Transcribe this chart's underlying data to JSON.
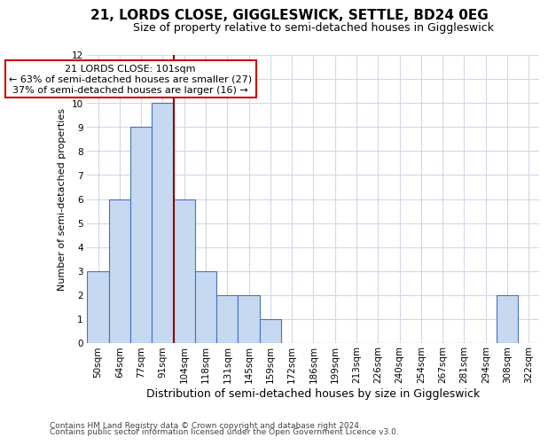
{
  "title": "21, LORDS CLOSE, GIGGLESWICK, SETTLE, BD24 0EG",
  "subtitle": "Size of property relative to semi-detached houses in Giggleswick",
  "xlabel": "Distribution of semi-detached houses by size in Giggleswick",
  "ylabel": "Number of semi-detached properties",
  "categories": [
    "50sqm",
    "64sqm",
    "77sqm",
    "91sqm",
    "104sqm",
    "118sqm",
    "131sqm",
    "145sqm",
    "159sqm",
    "172sqm",
    "186sqm",
    "199sqm",
    "213sqm",
    "226sqm",
    "240sqm",
    "254sqm",
    "267sqm",
    "281sqm",
    "294sqm",
    "308sqm",
    "322sqm"
  ],
  "values": [
    3,
    6,
    9,
    10,
    6,
    3,
    2,
    2,
    1,
    0,
    0,
    0,
    0,
    0,
    0,
    0,
    0,
    0,
    0,
    2,
    0
  ],
  "bar_color": "#c6d9f0",
  "bar_edge_color": "#4472c4",
  "vline_x": 3.5,
  "vline_color": "#8B0000",
  "annotation_text": "21 LORDS CLOSE: 101sqm\n← 63% of semi-detached houses are smaller (27)\n37% of semi-detached houses are larger (16) →",
  "annotation_box_color": "#ffffff",
  "annotation_box_edge": "#cc0000",
  "ylim": [
    0,
    12
  ],
  "yticks": [
    0,
    1,
    2,
    3,
    4,
    5,
    6,
    7,
    8,
    9,
    10,
    11,
    12
  ],
  "grid_color": "#d0d8e8",
  "background_color": "#ffffff",
  "footer_line1": "Contains HM Land Registry data © Crown copyright and database right 2024.",
  "footer_line2": "Contains public sector information licensed under the Open Government Licence v3.0.",
  "title_fontsize": 11,
  "subtitle_fontsize": 9,
  "xlabel_fontsize": 9,
  "ylabel_fontsize": 8,
  "tick_fontsize": 7.5,
  "annotation_fontsize": 8,
  "footer_fontsize": 6.5
}
